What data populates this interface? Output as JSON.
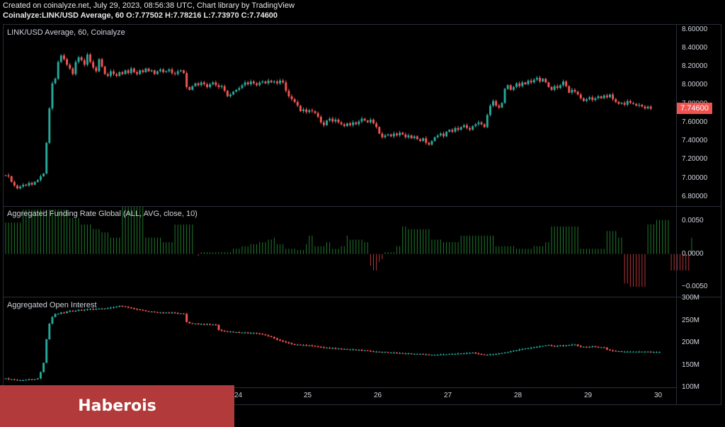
{
  "header": {
    "line1": "Created on coinalyze.net, July 29, 2023, 08:56:38 UTC, Chart library by TradingView",
    "line2": "Coinalyze:LINK/USD Average, 60 O:7.77502 H:7.78216 L:7.73970 C:7.74600"
  },
  "last_price_label": "7.74600",
  "brand_label": "Haberois",
  "colors": {
    "up": "#26a69a",
    "down": "#ef5350",
    "axis_text": "#d1d4dc",
    "banner": "#b33a3a"
  },
  "chart_data": [
    {
      "type": "candlestick",
      "title": "LINK/USD Average, 60, Coinalyze",
      "ylim": [
        6.7,
        8.65
      ],
      "y_ticks": [
        "8.60000",
        "8.40000",
        "8.20000",
        "8.00000",
        "7.80000",
        "7.60000",
        "7.40000",
        "7.20000",
        "7.00000",
        "6.80000"
      ],
      "y_tick_values": [
        8.6,
        8.4,
        8.2,
        8.0,
        7.8,
        7.6,
        7.4,
        7.2,
        7.0,
        6.8
      ],
      "last_value": 7.746,
      "x_ticks": [
        "24",
        "25",
        "26",
        "27",
        "28",
        "29",
        "30"
      ],
      "x_tick_days": [
        24,
        25,
        26,
        27,
        28,
        29,
        30
      ],
      "x_range_days": [
        20.65,
        30.25
      ],
      "series_start_day": 20.68,
      "bar_hours": 1,
      "closes": [
        7.03,
        7.02,
        6.96,
        6.92,
        6.89,
        6.91,
        6.93,
        6.92,
        6.95,
        6.93,
        6.96,
        6.98,
        7.02,
        7.05,
        7.38,
        7.75,
        8.02,
        8.07,
        8.25,
        8.32,
        8.28,
        8.22,
        8.18,
        8.12,
        8.25,
        8.3,
        8.27,
        8.22,
        8.33,
        8.25,
        8.19,
        8.15,
        8.28,
        8.2,
        8.12,
        8.1,
        8.15,
        8.12,
        8.1,
        8.14,
        8.12,
        8.16,
        8.13,
        8.18,
        8.14,
        8.12,
        8.16,
        8.14,
        8.18,
        8.15,
        8.16,
        8.12,
        8.15,
        8.17,
        8.14,
        8.15,
        8.17,
        8.13,
        8.12,
        8.15,
        8.16,
        8.13,
        7.98,
        7.95,
        7.99,
        8.02,
        8.0,
        8.03,
        8.01,
        7.98,
        8.01,
        8.03,
        8.0,
        7.98,
        7.99,
        7.94,
        7.88,
        7.9,
        7.93,
        7.95,
        7.97,
        8.0,
        8.03,
        8.01,
        8.04,
        8.02,
        8.0,
        8.03,
        8.04,
        8.02,
        8.05,
        8.03,
        8.04,
        8.02,
        8.05,
        8.03,
        7.94,
        7.88,
        7.85,
        7.82,
        7.78,
        7.72,
        7.74,
        7.71,
        7.73,
        7.72,
        7.7,
        7.66,
        7.6,
        7.57,
        7.62,
        7.64,
        7.61,
        7.63,
        7.6,
        7.58,
        7.56,
        7.59,
        7.57,
        7.6,
        7.58,
        7.61,
        7.64,
        7.62,
        7.6,
        7.63,
        7.59,
        7.55,
        7.48,
        7.44,
        7.46,
        7.47,
        7.45,
        7.48,
        7.46,
        7.49,
        7.47,
        7.44,
        7.46,
        7.43,
        7.45,
        7.42,
        7.4,
        7.43,
        7.38,
        7.36,
        7.4,
        7.44,
        7.46,
        7.48,
        7.45,
        7.5,
        7.52,
        7.5,
        7.54,
        7.52,
        7.55,
        7.57,
        7.54,
        7.52,
        7.56,
        7.58,
        7.6,
        7.58,
        7.55,
        7.68,
        7.78,
        7.83,
        7.78,
        7.76,
        7.81,
        7.96,
        8.0,
        7.95,
        7.98,
        8.02,
        7.99,
        8.03,
        8.01,
        8.05,
        8.03,
        8.06,
        8.08,
        8.04,
        8.07,
        8.03,
        7.98,
        7.95,
        7.99,
        7.97,
        8.0,
        8.04,
        7.99,
        7.92,
        7.95,
        7.93,
        7.9,
        7.86,
        7.83,
        7.85,
        7.87,
        7.84,
        7.86,
        7.88,
        7.86,
        7.89,
        7.87,
        7.9,
        7.85,
        7.82,
        7.8,
        7.81,
        7.79,
        7.83,
        7.81,
        7.8,
        7.78,
        7.79,
        7.77,
        7.75,
        7.77,
        7.746
      ]
    },
    {
      "type": "bar",
      "title": "Aggregated Funding Rate Global (ALL, AVG, close, 10)",
      "ylim": [
        -0.0065,
        0.0072
      ],
      "y_ticks": [
        "0.0050",
        "0.0000",
        "−0.0050"
      ],
      "y_tick_values": [
        0.005,
        0.0,
        -0.005
      ],
      "values": [
        0.0048,
        0.0048,
        0.0048,
        0.0048,
        0.0048,
        0.0048,
        0.0068,
        0.0068,
        0.0068,
        0.0068,
        0.0068,
        0.0068,
        0.0068,
        0.0068,
        0.0068,
        0.0068,
        0.0068,
        0.0068,
        0.0068,
        0.0068,
        0.0068,
        0.0068,
        0.0055,
        0.0055,
        0.0055,
        0.0055,
        0.0045,
        0.0045,
        0.0045,
        0.0045,
        0.0038,
        0.0038,
        0.0038,
        0.0033,
        0.0033,
        0.0033,
        0.0025,
        0.0025,
        0.0025,
        0.0025,
        0.0072,
        0.0072,
        0.0072,
        0.0072,
        0.0072,
        0.0072,
        0.0072,
        0.0072,
        0.0025,
        0.0025,
        0.0025,
        0.0025,
        0.0025,
        0.0025,
        0.0018,
        0.0018,
        0.0018,
        0.0018,
        0.0045,
        0.0045,
        0.0045,
        0.0045,
        0.0045,
        0.0045,
        0.0045,
        0.0,
        -0.0003,
        0.0003,
        0.0003,
        0.0003,
        0.0003,
        0.0003,
        0.0003,
        0.0003,
        0.0003,
        0.0003,
        0.0003,
        0.0003,
        0.0008,
        0.0008,
        0.0008,
        0.0012,
        0.0012,
        0.0012,
        0.0015,
        0.0015,
        0.0015,
        0.0018,
        0.0018,
        0.0018,
        0.0022,
        0.0022,
        0.0025,
        0.0015,
        0.0015,
        0.0015,
        0.0008,
        0.0008,
        0.0008,
        0.0008,
        0.0006,
        0.0006,
        0.0006,
        0.0015,
        0.0028,
        0.0028,
        0.0012,
        0.0012,
        0.0012,
        0.0012,
        0.0018,
        0.0018,
        0.0008,
        0.0008,
        0.0008,
        0.0012,
        0.0012,
        0.0028,
        0.0022,
        0.0022,
        0.0022,
        0.0022,
        0.0022,
        0.0018,
        0.0018,
        -0.0018,
        -0.0025,
        -0.0025,
        -0.0012,
        -0.0008,
        0.0003,
        0.0003,
        0.0003,
        0.0003,
        0.0012,
        0.0012,
        0.0042,
        0.0042,
        0.0038,
        0.0038,
        0.0038,
        0.0038,
        0.0038,
        0.0038,
        0.0038,
        0.0038,
        0.0022,
        0.0022,
        0.0022,
        0.0022,
        0.0018,
        0.0018,
        0.0018,
        0.0018,
        0.0018,
        0.0018,
        0.0028,
        0.0028,
        0.0028,
        0.0028,
        0.0028,
        0.0028,
        0.0028,
        0.0028,
        0.0028,
        0.0028,
        0.0028,
        0.0028,
        0.0012,
        0.0012,
        0.0012,
        0.0012,
        0.0012,
        0.0012,
        0.0012,
        0.0008,
        0.0008,
        0.0008,
        0.0008,
        0.0008,
        0.0008,
        0.0012,
        0.0012,
        0.0012,
        0.0012,
        0.0018,
        0.0018,
        0.0042,
        0.0042,
        0.0042,
        0.0042,
        0.0042,
        0.0042,
        0.0042,
        0.0042,
        0.0042,
        0.0042,
        0.0008,
        0.0008,
        0.0008,
        0.0008,
        0.0008,
        0.0008,
        0.0008,
        0.0008,
        0.0008,
        0.0035,
        0.0035,
        0.0035,
        0.0035,
        0.0025,
        0.0025,
        -0.0045,
        -0.0045,
        -0.005,
        -0.005,
        -0.005,
        -0.005,
        -0.005,
        -0.005,
        0.0045,
        0.0045,
        0.0045,
        0.0052,
        0.0052,
        0.0052,
        0.0052,
        0.0052,
        -0.0025,
        -0.0025,
        -0.0025,
        -0.0025,
        -0.0025,
        -0.0025,
        -0.0025,
        0.0025
      ]
    },
    {
      "type": "candlestick",
      "title": "Aggregated Open Interest",
      "ylim": [
        100,
        302
      ],
      "y_ticks": [
        "300M",
        "250M",
        "200M",
        "150M",
        "100M"
      ],
      "y_tick_values": [
        300,
        250,
        200,
        150,
        100
      ],
      "closes": [
        120,
        118,
        118,
        117,
        116,
        116,
        116,
        117,
        118,
        117,
        118,
        120,
        134,
        155,
        208,
        243,
        258,
        265,
        265,
        268,
        267,
        270,
        272,
        271,
        272,
        274,
        273,
        274,
        275,
        276,
        275,
        276,
        277,
        276,
        277,
        278,
        279,
        280,
        281,
        283,
        282,
        281,
        279,
        278,
        276,
        275,
        274,
        273,
        271,
        270,
        270,
        269,
        268,
        268,
        267,
        268,
        267,
        268,
        267,
        266,
        266,
        265,
        247,
        244,
        243,
        243,
        242,
        242,
        241,
        242,
        241,
        241,
        240,
        229,
        227,
        226,
        225,
        225,
        224,
        224,
        223,
        223,
        223,
        222,
        222,
        222,
        221,
        220,
        219,
        217,
        215,
        213,
        210,
        207,
        205,
        203,
        201,
        199,
        197,
        196,
        196,
        195,
        195,
        194,
        194,
        193,
        192,
        191,
        190,
        189,
        189,
        188,
        188,
        187,
        187,
        186,
        186,
        185,
        185,
        185,
        184,
        184,
        183,
        183,
        182,
        181,
        180,
        180,
        179,
        179,
        179,
        178,
        178,
        178,
        177,
        177,
        176,
        176,
        176,
        175,
        175,
        175,
        175,
        174,
        174,
        173,
        173,
        173,
        173,
        174,
        174,
        174,
        175,
        175,
        175,
        176,
        176,
        176,
        177,
        177,
        178,
        176,
        175,
        174,
        173,
        173,
        174,
        174,
        175,
        176,
        177,
        178,
        179,
        181,
        182,
        183,
        185,
        186,
        187,
        188,
        189,
        190,
        191,
        192,
        193,
        194,
        195,
        193,
        192,
        193,
        194,
        193,
        194,
        195,
        196,
        196,
        193,
        191,
        191,
        190,
        191,
        192,
        191,
        190,
        190,
        189,
        185,
        183,
        182,
        181,
        181,
        180,
        180,
        180,
        180,
        180,
        180,
        180,
        180,
        180,
        180,
        179,
        179,
        179,
        179
      ]
    }
  ]
}
